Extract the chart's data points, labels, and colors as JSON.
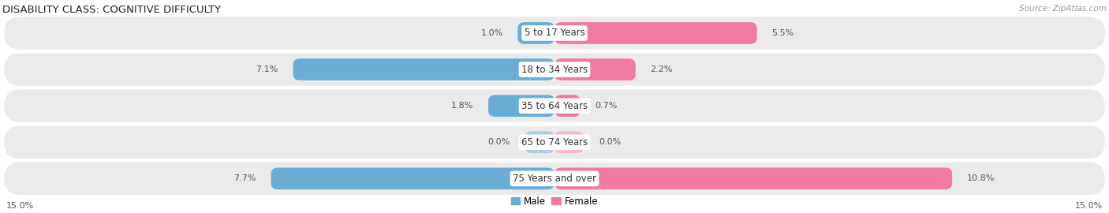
{
  "title": "DISABILITY CLASS: COGNITIVE DIFFICULTY",
  "source_text": "Source: ZipAtlas.com",
  "categories": [
    "5 to 17 Years",
    "18 to 34 Years",
    "35 to 64 Years",
    "65 to 74 Years",
    "75 Years and over"
  ],
  "male_values": [
    1.0,
    7.1,
    1.8,
    0.0,
    7.7
  ],
  "female_values": [
    5.5,
    2.2,
    0.7,
    0.0,
    10.8
  ],
  "male_color_dark": "#6aaed6",
  "male_color_light": "#aecde0",
  "female_color_dark": "#f07aa0",
  "female_color_light": "#f5b8ce",
  "row_bg_color": "#ebebeb",
  "max_val": 15.0,
  "legend_male": "Male",
  "legend_female": "Female",
  "axis_label_left": "15.0%",
  "axis_label_right": "15.0%",
  "title_fontsize": 9.5,
  "label_fontsize": 8.0,
  "category_fontsize": 8.5,
  "source_fontsize": 7.5
}
